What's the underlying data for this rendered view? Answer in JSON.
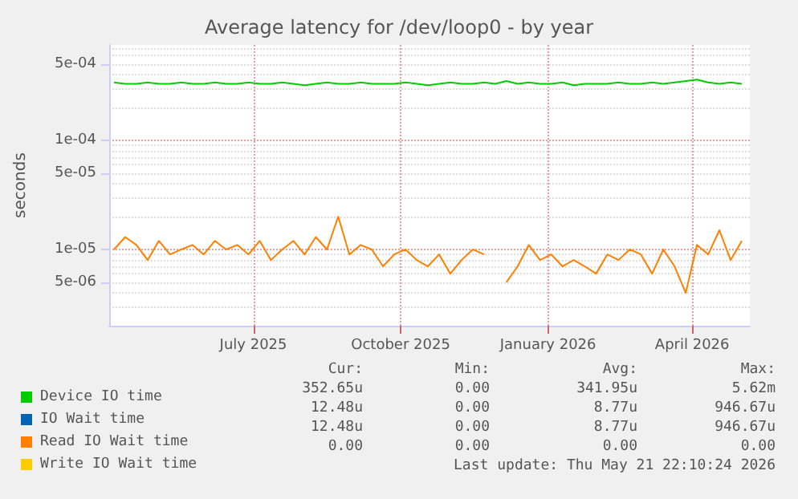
{
  "chart_data": {
    "type": "line",
    "title": "Average latency for /dev/loop0 - by year",
    "ylabel": "seconds",
    "log": "y",
    "grid": true,
    "marker": "none",
    "line_style": "solid",
    "legend": "bottom left",
    "x": [
      "2025-04-05",
      "2025-04-12",
      "2025-04-19",
      "2025-04-26",
      "2025-05-03",
      "2025-05-10",
      "2025-05-17",
      "2025-05-24",
      "2025-05-31",
      "2025-06-07",
      "2025-06-14",
      "2025-06-21",
      "2025-06-28",
      "2025-07-05",
      "2025-07-12",
      "2025-07-19",
      "2025-07-26",
      "2025-08-02",
      "2025-08-09",
      "2025-08-16",
      "2025-08-23",
      "2025-08-30",
      "2025-09-06",
      "2025-09-13",
      "2025-09-20",
      "2025-09-27",
      "2025-10-04",
      "2025-10-11",
      "2025-10-18",
      "2025-10-25",
      "2025-11-01",
      "2025-11-08",
      "2025-11-15",
      "2025-11-22",
      "2025-11-29",
      "2025-12-06",
      "2025-12-13",
      "2025-12-20",
      "2025-12-27",
      "2026-01-03",
      "2026-01-10",
      "2026-01-17",
      "2026-01-24",
      "2026-01-31",
      "2026-02-07",
      "2026-02-14",
      "2026-02-21",
      "2026-02-28",
      "2026-03-07",
      "2026-03-14",
      "2026-03-21",
      "2026-03-28",
      "2026-04-04",
      "2026-04-11",
      "2026-04-18",
      "2026-04-25",
      "2026-05-02"
    ],
    "xlim": [
      "2025-04-02",
      "2026-05-07"
    ],
    "xticks": [
      {
        "value": "2025-07-01",
        "label": "July 2025"
      },
      {
        "value": "2025-10-01",
        "label": "October 2025"
      },
      {
        "value": "2026-01-01",
        "label": "January 2026"
      },
      {
        "value": "2026-04-01",
        "label": "April 2026"
      }
    ],
    "ylim": [
      2e-06,
      0.00075
    ],
    "yticks": [
      {
        "value": 5e-06,
        "label": "5e-06"
      },
      {
        "value": 1e-05,
        "label": "1e-05"
      },
      {
        "value": 5e-05,
        "label": "5e-05"
      },
      {
        "value": 0.0001,
        "label": "1e-04"
      },
      {
        "value": 0.0005,
        "label": "5e-04"
      }
    ],
    "series": [
      {
        "name": "Device IO time",
        "color": "#00cc00",
        "values": [
          0.00034,
          0.00033,
          0.00033,
          0.00034,
          0.00033,
          0.00033,
          0.00034,
          0.00033,
          0.00033,
          0.00034,
          0.00033,
          0.00033,
          0.00034,
          0.00033,
          0.00033,
          0.00034,
          0.00033,
          0.00032,
          0.00033,
          0.00034,
          0.00033,
          0.00033,
          0.00034,
          0.00033,
          0.00033,
          0.00033,
          0.00034,
          0.00033,
          0.00032,
          0.00033,
          0.00034,
          0.00033,
          0.00033,
          0.00034,
          0.00033,
          0.00035,
          0.00033,
          0.00034,
          0.00033,
          0.00033,
          0.00034,
          0.00032,
          0.00033,
          0.00033,
          0.00033,
          0.00034,
          0.00033,
          0.00033,
          0.00034,
          0.00033,
          0.00034,
          0.00035,
          0.00036,
          0.00034,
          0.00033,
          0.00034,
          0.00033
        ]
      },
      {
        "name": "IO Wait time",
        "color": "#0066b3",
        "values": [
          null,
          null,
          null,
          null,
          null,
          null,
          null,
          null,
          null,
          null,
          null,
          null,
          null,
          null,
          null,
          null,
          null,
          null,
          null,
          null,
          null,
          null,
          null,
          null,
          null,
          null,
          null,
          null,
          null,
          null,
          null,
          null,
          null,
          null,
          null,
          null,
          null,
          null,
          null,
          null,
          null,
          null,
          null,
          null,
          null,
          null,
          null,
          null,
          null,
          null,
          null,
          null,
          null,
          null,
          null,
          null,
          null
        ]
      },
      {
        "name": "Read IO Wait time",
        "color": "#ff8000",
        "values": [
          1e-05,
          1.3e-05,
          1.1e-05,
          8e-06,
          1.2e-05,
          9e-06,
          1e-05,
          1.1e-05,
          9e-06,
          1.2e-05,
          1e-05,
          1.1e-05,
          9e-06,
          1.2e-05,
          8e-06,
          1e-05,
          1.2e-05,
          9e-06,
          1.3e-05,
          1e-05,
          2e-05,
          9e-06,
          1.1e-05,
          1e-05,
          7e-06,
          9e-06,
          1e-05,
          8e-06,
          7e-06,
          9e-06,
          6e-06,
          8e-06,
          1e-05,
          9e-06,
          null,
          5e-06,
          7e-06,
          1.1e-05,
          8e-06,
          9e-06,
          7e-06,
          8e-06,
          7e-06,
          6e-06,
          9e-06,
          8e-06,
          1e-05,
          9e-06,
          6e-06,
          1e-05,
          7e-06,
          4e-06,
          1.1e-05,
          9e-06,
          1.5e-05,
          8e-06,
          1.2e-05
        ]
      },
      {
        "name": "Write IO Wait time",
        "color": "#ffcc00",
        "values": [
          null,
          null,
          null,
          null,
          null,
          null,
          null,
          null,
          null,
          null,
          null,
          null,
          null,
          null,
          null,
          null,
          null,
          null,
          null,
          null,
          null,
          null,
          null,
          null,
          null,
          null,
          null,
          null,
          null,
          null,
          null,
          null,
          null,
          null,
          null,
          null,
          null,
          null,
          null,
          null,
          null,
          null,
          null,
          null,
          null,
          null,
          null,
          null,
          null,
          null,
          null,
          null,
          null,
          null,
          null,
          null,
          null
        ]
      }
    ],
    "annotations": [
      "Cur:",
      "Min:",
      "Avg:",
      "Max:",
      "352.65u",
      "0.00",
      "341.95u",
      "5.62m",
      "12.48u",
      "0.00",
      "8.77u",
      "946.67u",
      "12.48u",
      "0.00",
      "8.77u",
      "946.67u",
      "0.00",
      "0.00",
      "0.00",
      "0.00",
      "Last update: Thu May 21 22:10:24 2026"
    ]
  }
}
